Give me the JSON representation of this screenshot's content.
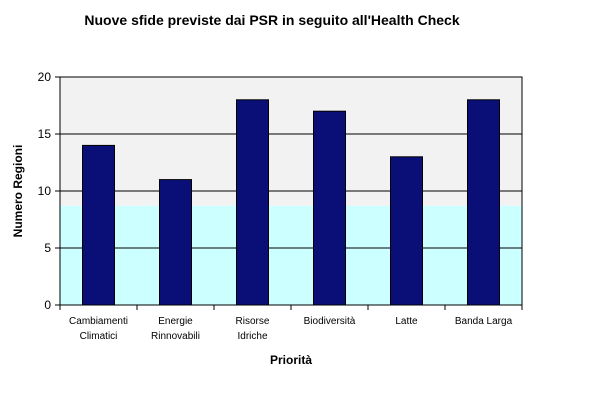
{
  "chart_data": {
    "type": "bar",
    "title": "Nuove sfide previste dai PSR  in seguito all'Health Check",
    "xlabel": "Priorità",
    "ylabel": "Numero Regioni",
    "categories": [
      [
        "Cambiamenti",
        "Climatici"
      ],
      [
        "Energie",
        "Rinnovabili"
      ],
      [
        "Risorse",
        "Idriche"
      ],
      [
        "Biodiversità"
      ],
      [
        "Latte"
      ],
      [
        "Banda Larga"
      ]
    ],
    "values": [
      14,
      11,
      18,
      17,
      13,
      18
    ],
    "ylim": [
      0,
      20
    ],
    "yticks": [
      "0",
      "5",
      "10",
      "15",
      "20"
    ],
    "grid": true,
    "legend": "none",
    "colors": {
      "bar": "#0a0f78",
      "plot_top": "#f2f2f2",
      "plot_bottom": "#ccffff",
      "grid": "#000000"
    }
  }
}
